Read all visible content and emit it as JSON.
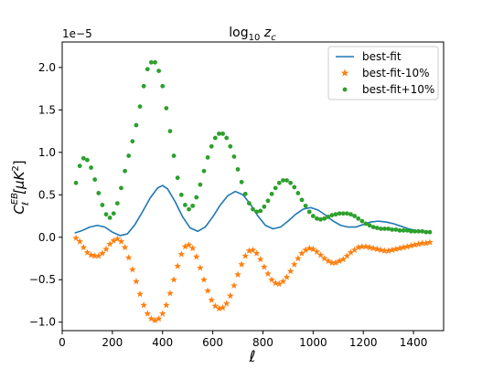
{
  "chart_data": {
    "type": "line",
    "title": "log10 zc",
    "title_parts": {
      "base": "log",
      "sub": "10",
      "var": "z",
      "var_sub": "c"
    },
    "xlabel": "ℓ",
    "ylabel": "C_ℓ^EB [μK²]",
    "ylabel_parts": {
      "sym": "C",
      "sub": "ℓ",
      "sup": "EB",
      "bracket": "[μK",
      "bracket_sup": "2",
      "bracket_end": "]"
    },
    "y_offset_label": "1e−5",
    "xlim": [
      0,
      1520
    ],
    "ylim": [
      -1.1,
      2.3
    ],
    "xticks": [
      0,
      200,
      400,
      600,
      800,
      1000,
      1200,
      1400
    ],
    "xtick_labels": [
      "0",
      "200",
      "400",
      "600",
      "800",
      "1000",
      "1200",
      "1400"
    ],
    "yticks": [
      -1.0,
      -0.5,
      0.0,
      0.5,
      1.0,
      1.5,
      2.0
    ],
    "ytick_labels": [
      "−1.0",
      "−0.5",
      "0.0",
      "0.5",
      "1.0",
      "1.5",
      "2.0"
    ],
    "grid": false,
    "legend_position": "top-right",
    "colors": {
      "best": "#1f77b4",
      "minus": "#ff7f0e",
      "plus": "#2ca02c"
    },
    "series": [
      {
        "name": "best-fit",
        "style": "line",
        "x": [
          50,
          80,
          110,
          140,
          170,
          200,
          230,
          260,
          290,
          320,
          350,
          380,
          400,
          420,
          450,
          480,
          510,
          540,
          570,
          600,
          630,
          660,
          690,
          720,
          750,
          780,
          810,
          840,
          870,
          900,
          930,
          960,
          990,
          1020,
          1050,
          1080,
          1110,
          1140,
          1170,
          1200,
          1230,
          1260,
          1290,
          1320,
          1350,
          1380,
          1410,
          1440,
          1470
        ],
        "values": [
          0.05,
          0.08,
          0.12,
          0.14,
          0.12,
          0.06,
          0.02,
          0.04,
          0.15,
          0.3,
          0.46,
          0.58,
          0.61,
          0.57,
          0.42,
          0.24,
          0.11,
          0.07,
          0.12,
          0.24,
          0.38,
          0.49,
          0.54,
          0.5,
          0.39,
          0.25,
          0.14,
          0.1,
          0.12,
          0.19,
          0.27,
          0.33,
          0.35,
          0.32,
          0.26,
          0.19,
          0.14,
          0.12,
          0.12,
          0.15,
          0.18,
          0.19,
          0.18,
          0.16,
          0.13,
          0.1,
          0.08,
          0.07,
          0.07
        ]
      },
      {
        "name": "best-fit-10%",
        "style": "star",
        "x": [
          55,
          70,
          85,
          100,
          115,
          130,
          145,
          160,
          175,
          190,
          205,
          220,
          235,
          250,
          265,
          280,
          295,
          310,
          325,
          340,
          355,
          370,
          385,
          400,
          415,
          430,
          445,
          460,
          475,
          490,
          505,
          520,
          535,
          550,
          565,
          580,
          595,
          610,
          625,
          640,
          655,
          670,
          685,
          700,
          715,
          730,
          745,
          760,
          775,
          790,
          805,
          820,
          835,
          850,
          865,
          880,
          895,
          910,
          925,
          940,
          955,
          970,
          985,
          1000,
          1015,
          1030,
          1045,
          1060,
          1075,
          1090,
          1105,
          1120,
          1135,
          1150,
          1165,
          1180,
          1195,
          1210,
          1225,
          1240,
          1255,
          1270,
          1285,
          1300,
          1315,
          1330,
          1345,
          1360,
          1375,
          1390,
          1405,
          1420,
          1435,
          1450,
          1465
        ],
        "values": [
          -0.01,
          -0.05,
          -0.12,
          -0.18,
          -0.21,
          -0.22,
          -0.22,
          -0.19,
          -0.14,
          -0.08,
          -0.04,
          -0.02,
          -0.05,
          -0.12,
          -0.24,
          -0.38,
          -0.52,
          -0.67,
          -0.8,
          -0.9,
          -0.96,
          -0.98,
          -0.96,
          -0.9,
          -0.8,
          -0.66,
          -0.5,
          -0.34,
          -0.2,
          -0.11,
          -0.09,
          -0.13,
          -0.23,
          -0.36,
          -0.5,
          -0.63,
          -0.74,
          -0.81,
          -0.84,
          -0.83,
          -0.78,
          -0.69,
          -0.57,
          -0.44,
          -0.32,
          -0.22,
          -0.16,
          -0.15,
          -0.19,
          -0.26,
          -0.35,
          -0.43,
          -0.5,
          -0.54,
          -0.55,
          -0.52,
          -0.47,
          -0.4,
          -0.32,
          -0.25,
          -0.19,
          -0.15,
          -0.13,
          -0.14,
          -0.17,
          -0.21,
          -0.25,
          -0.28,
          -0.3,
          -0.3,
          -0.28,
          -0.26,
          -0.22,
          -0.18,
          -0.15,
          -0.12,
          -0.11,
          -0.11,
          -0.12,
          -0.13,
          -0.14,
          -0.15,
          -0.16,
          -0.16,
          -0.15,
          -0.14,
          -0.13,
          -0.12,
          -0.11,
          -0.1,
          -0.09,
          -0.08,
          -0.07,
          -0.07,
          -0.06
        ]
      },
      {
        "name": "best-fit+10%",
        "style": "dot",
        "x": [
          55,
          70,
          85,
          100,
          115,
          130,
          145,
          160,
          175,
          190,
          205,
          220,
          235,
          250,
          265,
          280,
          295,
          310,
          325,
          340,
          355,
          370,
          385,
          400,
          415,
          430,
          445,
          460,
          475,
          490,
          505,
          520,
          535,
          550,
          565,
          580,
          595,
          610,
          625,
          640,
          655,
          670,
          685,
          700,
          715,
          730,
          745,
          760,
          775,
          790,
          805,
          820,
          835,
          850,
          865,
          880,
          895,
          910,
          925,
          940,
          955,
          970,
          985,
          1000,
          1015,
          1030,
          1045,
          1060,
          1075,
          1090,
          1105,
          1120,
          1135,
          1150,
          1165,
          1180,
          1195,
          1210,
          1225,
          1240,
          1255,
          1270,
          1285,
          1300,
          1315,
          1330,
          1345,
          1360,
          1375,
          1390,
          1405,
          1420,
          1435,
          1450,
          1465
        ],
        "values": [
          0.64,
          0.84,
          0.93,
          0.91,
          0.82,
          0.68,
          0.52,
          0.38,
          0.27,
          0.23,
          0.28,
          0.4,
          0.58,
          0.78,
          0.96,
          1.13,
          1.32,
          1.54,
          1.78,
          1.98,
          2.06,
          2.06,
          1.96,
          1.78,
          1.52,
          1.25,
          0.96,
          0.7,
          0.5,
          0.38,
          0.33,
          0.37,
          0.47,
          0.62,
          0.78,
          0.94,
          1.07,
          1.17,
          1.22,
          1.22,
          1.17,
          1.07,
          0.95,
          0.8,
          0.65,
          0.51,
          0.4,
          0.33,
          0.3,
          0.31,
          0.36,
          0.43,
          0.51,
          0.58,
          0.64,
          0.67,
          0.67,
          0.64,
          0.59,
          0.52,
          0.44,
          0.37,
          0.3,
          0.25,
          0.22,
          0.21,
          0.22,
          0.24,
          0.26,
          0.27,
          0.28,
          0.28,
          0.28,
          0.27,
          0.25,
          0.22,
          0.19,
          0.16,
          0.14,
          0.12,
          0.11,
          0.1,
          0.1,
          0.1,
          0.09,
          0.09,
          0.08,
          0.08,
          0.08,
          0.07,
          0.07,
          0.07,
          0.07,
          0.06,
          0.06
        ]
      }
    ]
  }
}
